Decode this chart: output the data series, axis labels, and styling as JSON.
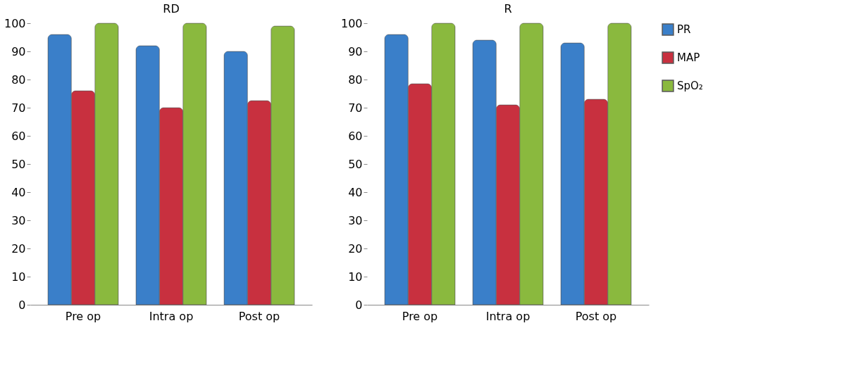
{
  "chart_data": [
    {
      "type": "bar",
      "title": "RD",
      "categories": [
        "Pre op",
        "Intra op",
        "Post op"
      ],
      "ylim": [
        0,
        100
      ],
      "yticks": [
        0,
        10,
        20,
        30,
        40,
        50,
        60,
        70,
        80,
        90,
        100
      ],
      "grid": false,
      "legend": "right",
      "series": [
        {
          "name": "PR",
          "color": "#3a7fc9",
          "values": [
            96,
            92,
            90
          ]
        },
        {
          "name": "MAP",
          "color": "#c8303f",
          "values": [
            76,
            70,
            72.5
          ]
        },
        {
          "name": "SpO₂",
          "color": "#8ab93e",
          "values": [
            100,
            100,
            99
          ]
        }
      ]
    },
    {
      "type": "bar",
      "title": "R",
      "categories": [
        "Pre op",
        "Intra op",
        "Post op"
      ],
      "ylim": [
        0,
        100
      ],
      "yticks": [
        0,
        10,
        20,
        30,
        40,
        50,
        60,
        70,
        80,
        90,
        100
      ],
      "grid": false,
      "legend": "right",
      "series": [
        {
          "name": "PR",
          "color": "#3a7fc9",
          "values": [
            96,
            94,
            93
          ]
        },
        {
          "name": "MAP",
          "color": "#c8303f",
          "values": [
            78.5,
            71,
            73
          ]
        },
        {
          "name": "SpO₂",
          "color": "#8ab93e",
          "values": [
            100,
            100,
            100
          ]
        }
      ]
    }
  ]
}
